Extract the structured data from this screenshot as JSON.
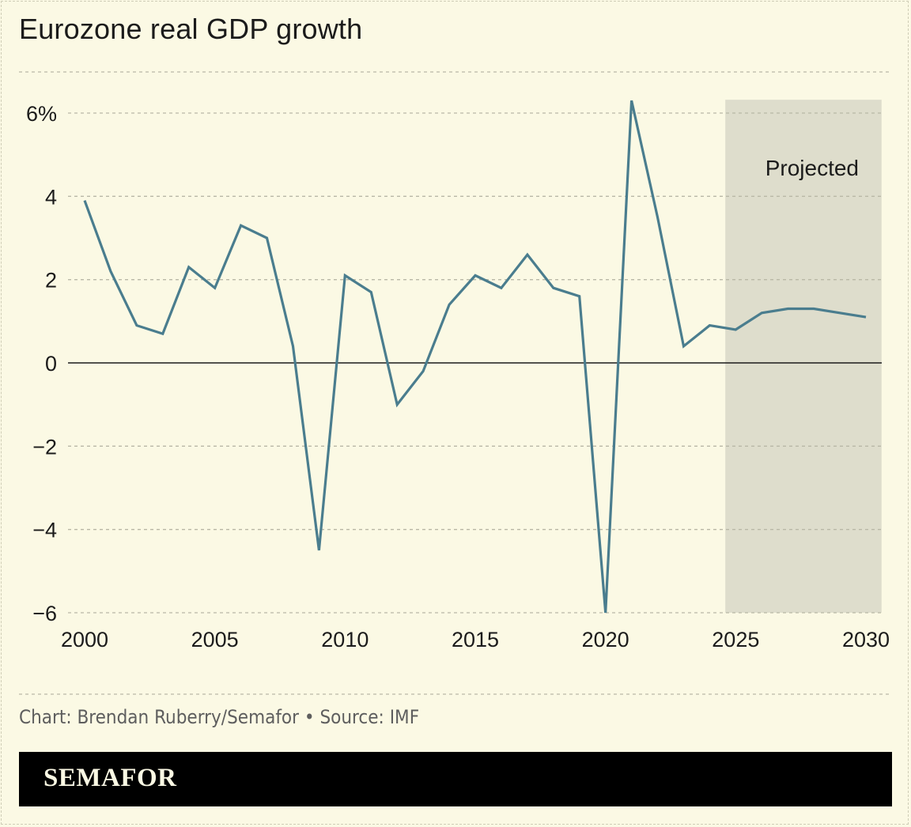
{
  "title": "Eurozone real GDP growth",
  "credit": "Chart: Brendan Ruberry/Semafor • Source: IMF",
  "brand": "SEMAFOR",
  "colors": {
    "background": "#fbf9e4",
    "line": "#4a7d8e",
    "projected_shade": "#deddcc",
    "grid": "#b9b8a6",
    "brand_bar": "#000000"
  },
  "chart_data": {
    "type": "line",
    "title": "Eurozone real GDP growth",
    "xlabel": "",
    "ylabel": "",
    "x": [
      2000,
      2001,
      2002,
      2003,
      2004,
      2005,
      2006,
      2007,
      2008,
      2009,
      2010,
      2011,
      2012,
      2013,
      2014,
      2015,
      2016,
      2017,
      2018,
      2019,
      2020,
      2021,
      2022,
      2023,
      2024,
      2025,
      2026,
      2027,
      2028,
      2029,
      2030
    ],
    "series": [
      {
        "values": [
          3.9,
          2.2,
          0.9,
          0.7,
          2.3,
          1.8,
          3.3,
          3.0,
          0.4,
          -4.5,
          2.1,
          1.7,
          -1.0,
          -0.2,
          1.4,
          2.1,
          1.8,
          2.6,
          1.8,
          1.6,
          -6.0,
          6.3,
          3.5,
          0.4,
          0.9,
          0.8,
          1.2,
          1.3,
          1.3,
          1.2,
          1.1
        ]
      }
    ],
    "xlim": [
      2000,
      2030.5
    ],
    "ylim": [
      -6,
      6.5
    ],
    "x_ticks": [
      2000,
      2005,
      2010,
      2015,
      2020,
      2025,
      2030
    ],
    "x_tick_labels": [
      "2000",
      "2005",
      "2010",
      "2015",
      "2020",
      "2025",
      "2030"
    ],
    "y_ticks": [
      6,
      4,
      2,
      0,
      -2,
      -4,
      -6
    ],
    "y_tick_labels": [
      "6%",
      "4",
      "2",
      "0",
      "−2",
      "−4",
      "−6"
    ],
    "grid": true,
    "projected_region": {
      "from": 2024.6,
      "to": 2030.6,
      "label": "Projected"
    }
  }
}
